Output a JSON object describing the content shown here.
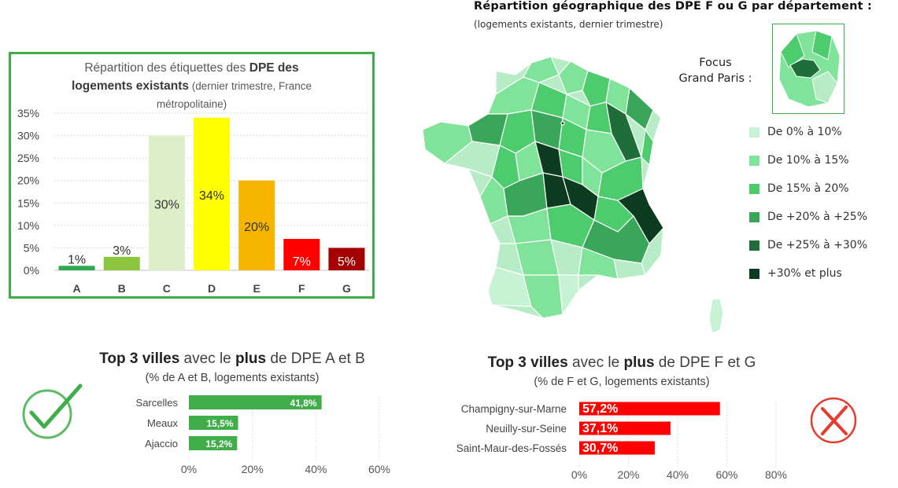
{
  "bar_panel": {
    "title_prefix": "Répartition des étiquettes des ",
    "title_bold_1": "DPE des",
    "title_bold_2": "logements existants",
    "title_suffix": " (dernier trimestre, France",
    "title_line3": "métropolitaine)"
  },
  "map_panel": {
    "title": "Répartition géographique des DPE F ou G par département :",
    "subtitle": "(logements existants, dernier trimestre)",
    "focus_label_1": "Focus",
    "focus_label_2": "Grand Paris :",
    "legend": [
      {
        "label": "De 0% à 10%",
        "color": "#c8f2d4"
      },
      {
        "label": "De 10% à 15%",
        "color": "#7fe39a"
      },
      {
        "label": "De 15% à 20%",
        "color": "#4ccc6c"
      },
      {
        "label": "De +20% à +25%",
        "color": "#3aa65a"
      },
      {
        "label": "De +25% à +30%",
        "color": "#1f6e3a"
      },
      {
        "label": "+30% et plus",
        "color": "#0d3b1f"
      }
    ]
  },
  "top_ab": {
    "title_bold_1": "Top 3 villes",
    "title_mid": " avec le ",
    "title_bold_2": "plus",
    "title_end": " de DPE A et B",
    "subtitle": "(% de A et B, logements existants)"
  },
  "top_fg": {
    "title_bold_1": "Top 3 villes",
    "title_mid": " avec le ",
    "title_bold_2": "plus",
    "title_end": " de DPE F et G",
    "subtitle": "(% de F et G, logements existants)"
  },
  "chart_data": [
    {
      "type": "bar",
      "title": "Répartition des étiquettes des DPE des logements existants (dernier trimestre, France métropolitaine)",
      "categories": [
        "A",
        "B",
        "C",
        "D",
        "E",
        "F",
        "G"
      ],
      "values": [
        1,
        3,
        30,
        34,
        20,
        7,
        5
      ],
      "data_labels": [
        "1%",
        "3%",
        "30%",
        "34%",
        "20%",
        "7%",
        "5%"
      ],
      "colors": [
        "#2fa84f",
        "#8cc63f",
        "#dcefc8",
        "#ffff00",
        "#f7b500",
        "#ff0000",
        "#a50000"
      ],
      "label_colors": [
        "#333333",
        "#333333",
        "#333333",
        "#333333",
        "#333333",
        "#ffffff",
        "#ffffff"
      ],
      "yticks": [
        "0%",
        "5%",
        "10%",
        "15%",
        "20%",
        "25%",
        "30%",
        "35%"
      ],
      "ylim": [
        0,
        35
      ],
      "grid": true
    },
    {
      "type": "bar",
      "orientation": "horizontal",
      "title": "Top 3 villes avec le plus de DPE A et B",
      "categories": [
        "Sarcelles",
        "Meaux",
        "Ajaccio"
      ],
      "values": [
        41.8,
        15.5,
        15.2
      ],
      "data_labels": [
        "41,8%",
        "15,5%",
        "15,2%"
      ],
      "color": "#3fae49",
      "xticks": [
        "0%",
        "20%",
        "40%",
        "60%"
      ],
      "xlim": [
        0,
        60
      ],
      "grid": true
    },
    {
      "type": "bar",
      "orientation": "horizontal",
      "title": "Top 3 villes avec le plus de DPE F et G",
      "categories": [
        "Champigny-sur-Marne",
        "Neuilly-sur-Seine",
        "Saint-Maur-des-Fossés"
      ],
      "values": [
        57.2,
        37.1,
        30.7
      ],
      "data_labels": [
        "57,2%",
        "37,1%",
        "30,7%"
      ],
      "color": "#ff0000",
      "xticks": [
        "0%",
        "20%",
        "40%",
        "60%",
        "80%"
      ],
      "xlim": [
        0,
        80
      ],
      "grid": true
    }
  ]
}
